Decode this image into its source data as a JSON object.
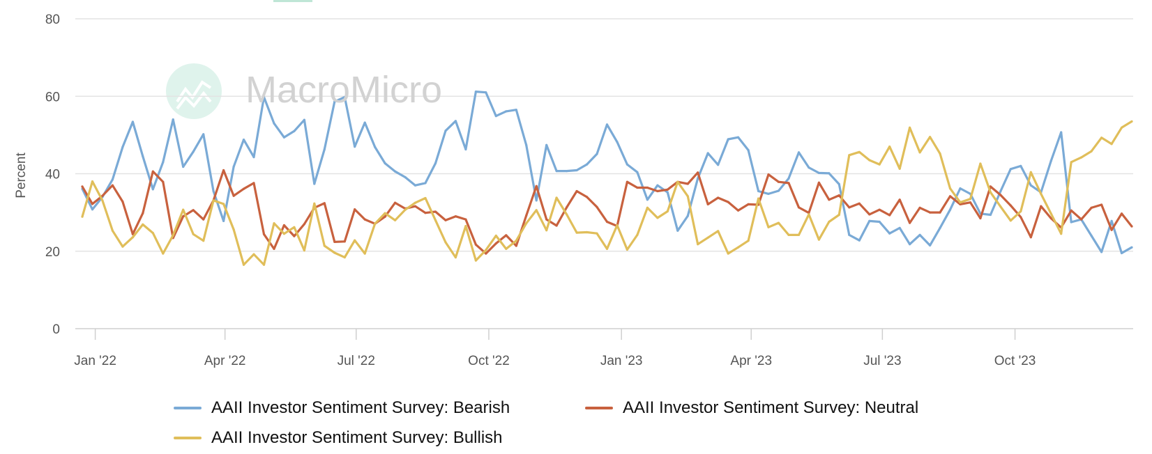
{
  "watermark": {
    "text": "MacroMicro",
    "logo_color": "#dff3ec"
  },
  "chart_data": {
    "type": "line",
    "ylabel": "Percent",
    "xlabel": "",
    "ylim": [
      0,
      80
    ],
    "yticks": [
      "0",
      "20",
      "40",
      "60",
      "80"
    ],
    "xticks": [
      {
        "date": "2022-01-01",
        "label": "Jan '22"
      },
      {
        "date": "2022-04-01",
        "label": "Apr '22"
      },
      {
        "date": "2022-07-01",
        "label": "Jul '22"
      },
      {
        "date": "2022-10-01",
        "label": "Oct '22"
      },
      {
        "date": "2023-01-01",
        "label": "Jan '23"
      },
      {
        "date": "2023-04-01",
        "label": "Apr '23"
      },
      {
        "date": "2023-07-01",
        "label": "Jul '23"
      },
      {
        "date": "2023-10-01",
        "label": "Oct '23"
      }
    ],
    "grid": true,
    "legend_position": "bottom",
    "x": [
      "2021-12-23",
      "2021-12-30",
      "2022-01-06",
      "2022-01-13",
      "2022-01-20",
      "2022-01-27",
      "2022-02-03",
      "2022-02-10",
      "2022-02-17",
      "2022-02-24",
      "2022-03-03",
      "2022-03-10",
      "2022-03-17",
      "2022-03-24",
      "2022-03-31",
      "2022-04-07",
      "2022-04-14",
      "2022-04-21",
      "2022-04-28",
      "2022-05-05",
      "2022-05-12",
      "2022-05-19",
      "2022-05-26",
      "2022-06-02",
      "2022-06-09",
      "2022-06-16",
      "2022-06-23",
      "2022-06-30",
      "2022-07-07",
      "2022-07-14",
      "2022-07-21",
      "2022-07-28",
      "2022-08-04",
      "2022-08-11",
      "2022-08-18",
      "2022-08-25",
      "2022-09-01",
      "2022-09-08",
      "2022-09-15",
      "2022-09-22",
      "2022-09-29",
      "2022-10-06",
      "2022-10-13",
      "2022-10-20",
      "2022-10-27",
      "2022-11-03",
      "2022-11-10",
      "2022-11-17",
      "2022-11-24",
      "2022-12-01",
      "2022-12-08",
      "2022-12-15",
      "2022-12-22",
      "2022-12-29",
      "2023-01-05",
      "2023-01-12",
      "2023-01-19",
      "2023-01-26",
      "2023-02-02",
      "2023-02-09",
      "2023-02-16",
      "2023-02-23",
      "2023-03-02",
      "2023-03-09",
      "2023-03-16",
      "2023-03-23",
      "2023-03-30",
      "2023-04-06",
      "2023-04-13",
      "2023-04-20",
      "2023-04-27",
      "2023-05-04",
      "2023-05-11",
      "2023-05-18",
      "2023-05-25",
      "2023-06-01",
      "2023-06-08",
      "2023-06-15",
      "2023-06-22",
      "2023-06-29",
      "2023-07-06",
      "2023-07-13",
      "2023-07-20",
      "2023-07-27",
      "2023-08-03",
      "2023-08-10",
      "2023-08-17",
      "2023-08-24",
      "2023-08-31",
      "2023-09-07",
      "2023-09-14",
      "2023-09-21",
      "2023-09-28",
      "2023-10-05",
      "2023-10-12",
      "2023-10-19",
      "2023-10-26",
      "2023-11-02",
      "2023-11-09",
      "2023-11-16",
      "2023-11-23",
      "2023-11-30",
      "2023-12-07",
      "2023-12-14",
      "2023-12-21"
    ],
    "series": [
      {
        "name": "AAII Investor Sentiment Survey: Bearish",
        "color": "#7aaad6",
        "values": [
          36.1,
          30.8,
          34,
          38.5,
          46.9,
          53.4,
          44.5,
          36,
          43,
          54,
          41.8,
          45.7,
          50.2,
          35.5,
          27.8,
          41.8,
          48.8,
          44.3,
          59.8,
          53,
          49.4,
          51,
          53.9,
          37.4,
          46.3,
          58.6,
          59.8,
          47,
          53.2,
          46.9,
          42.7,
          40.6,
          39.1,
          37,
          37.6,
          42.7,
          51.1,
          53.6,
          46.3,
          61.2,
          61,
          54.9,
          56.1,
          56.5,
          47.4,
          33.1,
          47.4,
          40.7,
          40.7,
          40.9,
          42.4,
          45.1,
          52.7,
          48.2,
          42.4,
          40.4,
          33.3,
          37,
          35.2,
          25.3,
          29.1,
          38.8,
          45.3,
          42.3,
          48.9,
          49.4,
          46.1,
          35.5,
          34.8,
          35.6,
          38.8,
          45.5,
          41.6,
          40.2,
          40.1,
          37.3,
          24.2,
          22.8,
          27.8,
          27.6,
          24.6,
          26,
          21.8,
          24.2,
          21.5,
          26,
          30.7,
          36.2,
          34.8,
          29.7,
          29.4,
          35.5,
          41.2,
          42,
          37,
          35.2,
          43.3,
          50.7,
          27.5,
          28.2,
          24,
          19.8,
          27.8,
          19.5,
          21
        ]
      },
      {
        "name": "AAII Investor Sentiment Survey: Neutral",
        "color": "#c8613e",
        "values": [
          36.7,
          32.2,
          34.3,
          37,
          32.8,
          24.4,
          29.8,
          40.6,
          37.9,
          23.4,
          29,
          30.6,
          28.2,
          33.1,
          40.9,
          34.3,
          36.1,
          37.6,
          24.4,
          20.6,
          26.7,
          23.9,
          27,
          31.2,
          32.4,
          22.4,
          22.5,
          30.8,
          28.2,
          27.1,
          28.9,
          32.5,
          31,
          31.6,
          29.9,
          30.2,
          28,
          29,
          28.2,
          21.7,
          19.4,
          22,
          24.1,
          21.4,
          29.2,
          36.8,
          28.2,
          26.6,
          31.3,
          35.5,
          34,
          31.4,
          27.6,
          26.5,
          37.9,
          36.4,
          36.4,
          35.5,
          35.9,
          37.9,
          37.4,
          40.3,
          32.1,
          33.8,
          32.7,
          30.5,
          32.1,
          32,
          39.8,
          37.9,
          37.6,
          31.3,
          29.9,
          37.7,
          33.3,
          34.4,
          31.3,
          32.3,
          29.5,
          30.7,
          29.3,
          33.3,
          27.3,
          31.2,
          30,
          30,
          34.2,
          32.1,
          32.6,
          28.5,
          36.7,
          34.5,
          31.8,
          28.8,
          23.6,
          31.6,
          28.5,
          26.1,
          30.5,
          28.2,
          31.2,
          32,
          25.5,
          29.7,
          26.4
        ]
      },
      {
        "name": "AAII Investor Sentiment Survey: Bullish",
        "color": "#e0be5a",
        "values": [
          28.9,
          38,
          33.1,
          25.3,
          21.2,
          23.6,
          26.9,
          24.7,
          19.4,
          24.1,
          30.7,
          24.4,
          22.7,
          33.1,
          32.2,
          25.6,
          16.5,
          19.2,
          16.5,
          27.2,
          24.5,
          26.2,
          20.2,
          32.3,
          21.4,
          19.6,
          18.4,
          22.8,
          19.4,
          27.1,
          29.8,
          28,
          30.7,
          32.5,
          33.7,
          28,
          22.3,
          18.4,
          26.5,
          17.6,
          20.3,
          24,
          20.6,
          22.7,
          27.2,
          30.6,
          25.4,
          33.8,
          29.5,
          24.8,
          24.9,
          24.6,
          20.6,
          26.7,
          20.4,
          24.2,
          31.2,
          28.6,
          30.3,
          37.9,
          34.2,
          21.8,
          23.5,
          25.2,
          19.4,
          21,
          22.7,
          33.6,
          26.2,
          27.3,
          24.2,
          24.2,
          29.5,
          23,
          27.6,
          29.4,
          44.8,
          45.6,
          43.5,
          42.4,
          47,
          41.3,
          51.9,
          45.5,
          49.5,
          45.2,
          36.2,
          32.6,
          33.5,
          42.6,
          35.2,
          31.5,
          27.9,
          30.3,
          40.4,
          34.8,
          29.7,
          24.5,
          43,
          44.2,
          45.8,
          49.3,
          47.7,
          51.9,
          53.5
        ]
      }
    ]
  }
}
